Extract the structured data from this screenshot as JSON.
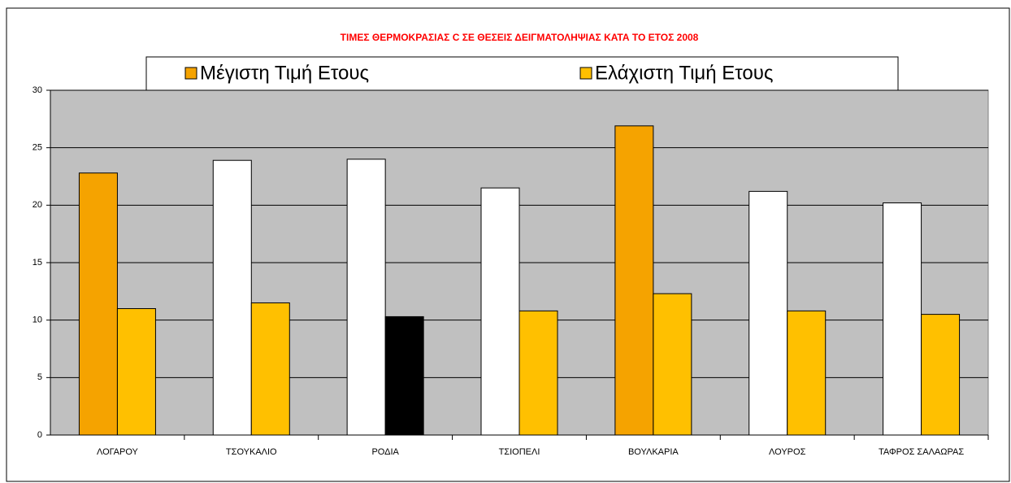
{
  "chart_data": {
    "type": "bar",
    "title": "ΤΙΜΕΣ ΘΕΡΜΟΚΡΑΣΙΑΣ C ΣΕ ΘΕΣΕΙΣ ΔΕΙΓΜΑΤΟΛΗΨΙΑΣ ΚΑΤΑ ΤΟ ΕΤΟΣ 2008",
    "title_color": "#ff0000",
    "categories": [
      "ΛΟΓΑΡΟΥ",
      "ΤΣΟΥΚΑΛΙΟ",
      "ΡΟΔΙΑ",
      "ΤΣΙΟΠΕΛΙ",
      "ΒΟΥΛΚΑΡΙΑ",
      "ΛΟΥΡΟΣ",
      "ΤΑΦΡΟΣ ΣΑΛΑΩΡΑΣ"
    ],
    "series": [
      {
        "name": "Μέγιστη Τιμή Ετους",
        "color": "#f5a300",
        "values": [
          22.8,
          23.9,
          24.0,
          21.5,
          26.9,
          21.2,
          20.2
        ],
        "colors": [
          "#f5a300",
          "#ffffff",
          "#ffffff",
          "#ffffff",
          "#f5a300",
          "#ffffff",
          "#ffffff"
        ]
      },
      {
        "name": "Ελάχιστη Τιμή Ετους",
        "color": "#ffc000",
        "values": [
          11.0,
          11.5,
          10.3,
          10.8,
          12.3,
          10.8,
          10.5
        ],
        "colors": [
          "#ffc000",
          "#ffc000",
          "#000000",
          "#ffc000",
          "#ffc000",
          "#ffc000",
          "#ffc000"
        ]
      }
    ],
    "ylim": [
      0,
      30
    ],
    "yticks": [
      0,
      5,
      10,
      15,
      20,
      25,
      30
    ],
    "grid": true,
    "plot_background": "#c0c0c0",
    "legend": "top"
  }
}
